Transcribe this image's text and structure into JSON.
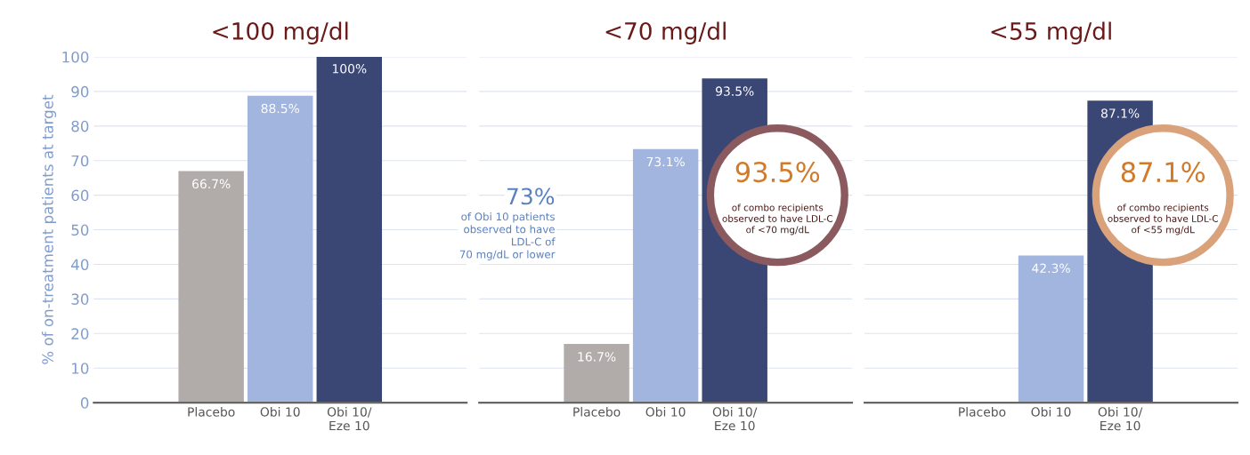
{
  "chart_data": [
    {
      "type": "bar",
      "title": "<100 mg/dl",
      "ylabel": "% of on-treatment patients at target",
      "categories": [
        "Placebo",
        "Obi 10",
        "Obi 10/\nEze 10"
      ],
      "values": [
        66.7,
        88.5,
        100
      ],
      "colors": [
        "#b1acaa",
        "#a1b5de",
        "#3a4775"
      ],
      "value_labels": [
        "66.7%",
        "88.5%",
        "100%"
      ],
      "ylim": [
        0,
        100
      ],
      "yticks": [
        0,
        10,
        20,
        30,
        40,
        50,
        60,
        70,
        80,
        90,
        100
      ],
      "grid": "y"
    },
    {
      "type": "bar",
      "title": "<70 mg/dl",
      "categories": [
        "Placebo",
        "Obi 10",
        "Obi 10/\nEze 10"
      ],
      "values": [
        16.7,
        73.1,
        93.5
      ],
      "colors": [
        "#b1acaa",
        "#a1b5de",
        "#3a4775"
      ],
      "value_labels": [
        "16.7%",
        "73.1%",
        "93.5%"
      ],
      "ylim": [
        0,
        100
      ],
      "yticks": [
        0,
        10,
        20,
        30,
        40,
        50,
        60,
        70,
        80,
        90,
        100
      ],
      "tick_labels": "x",
      "grid": "y",
      "annotations": [
        "73%",
        "of Obi 10 patients\nobserved to have\nLDL-C of\n70 mg/dL or lower",
        "93.5%",
        "of combo recipients\nobserved to have LDL-C\nof <70 mg/dL"
      ]
    },
    {
      "type": "bar",
      "title": "<55 mg/dl",
      "categories": [
        "Placebo",
        "Obi 10",
        "Obi 10/\nEze 10"
      ],
      "values": [
        0,
        42.3,
        87.1
      ],
      "colors": [
        "#b1acaa",
        "#a1b5de",
        "#3a4775"
      ],
      "value_labels": [
        null,
        "42.3%",
        "87.1%"
      ],
      "ylim": [
        0,
        100
      ],
      "yticks": [
        0,
        10,
        20,
        30,
        40,
        50,
        60,
        70,
        80,
        90,
        100
      ],
      "tick_labels": "x",
      "grid": "y",
      "annotations": [
        "87.1%",
        "of combo recipients\nobserved to have LDL-C\nof <55 mg/dL"
      ]
    }
  ]
}
